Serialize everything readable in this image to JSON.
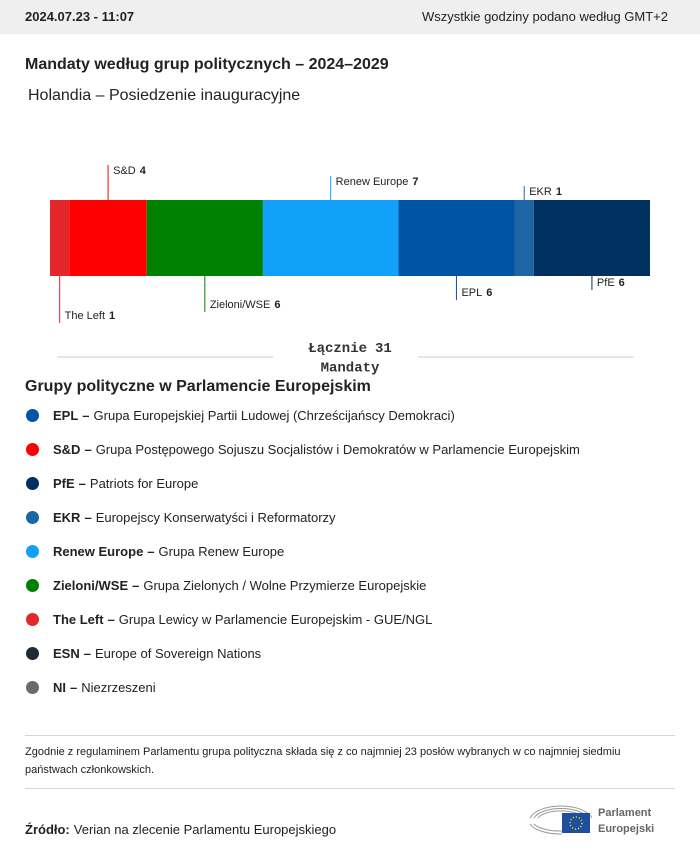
{
  "header": {
    "timestamp": "2024.07.23 - 11:07",
    "timezone_note": "Wszystkie godziny podano według GMT+2"
  },
  "chart_data": {
    "type": "stacked-bar",
    "title": "Mandaty według grup politycznych – 2024–2029",
    "subtitle": "Holandia – Posiedzenie inauguracyjne",
    "categories": [
      "The Left",
      "S&D",
      "Zieloni/WSE",
      "Renew Europe",
      "EPL",
      "EKR",
      "PfE"
    ],
    "values": [
      1,
      4,
      6,
      7,
      6,
      1,
      6
    ],
    "colors": [
      "#e3262c",
      "#ff0000",
      "#008000",
      "#11a0fa",
      "#0054a6",
      "#1d66a6",
      "#00305f"
    ],
    "total_label": "Łącznie",
    "total": 31,
    "total_unit": "Mandaty"
  },
  "legend": {
    "title": "Grupy polityczne w Parlamencie Europejskim",
    "separator": "–",
    "items": [
      {
        "abbr": "EPL",
        "description": "Grupa Europejskiej Partii Ludowej (Chrześcijańscy Demokraci)",
        "color": "#0054a6"
      },
      {
        "abbr": "S&D",
        "description": "Grupa Postępowego Sojuszu Socjalistów i Demokratów w Parlamencie Europejskim",
        "color": "#ff0000"
      },
      {
        "abbr": "PfE",
        "description": "Patriots for Europe",
        "color": "#00305f"
      },
      {
        "abbr": "EKR",
        "description": "Europejscy Konserwatyści i Reformatorzy",
        "color": "#1d66a6"
      },
      {
        "abbr": "Renew Europe",
        "description": "Grupa Renew Europe",
        "color": "#11a0fa"
      },
      {
        "abbr": "Zieloni/WSE",
        "description": "Grupa Zielonych / Wolne Przymierze Europejskie",
        "color": "#008000"
      },
      {
        "abbr": "The Left",
        "description": "Grupa Lewicy w Parlamencie Europejskim - GUE/NGL",
        "color": "#e3262c"
      },
      {
        "abbr": "ESN",
        "description": "Europe of Sovereign Nations",
        "color": "#1c2a3a"
      },
      {
        "abbr": "NI",
        "description": "Niezrzeszeni",
        "color": "#6b6b6b"
      }
    ]
  },
  "footnote": "Zgodnie z regulaminem Parlamentu grupa polityczna składa się z co najmniej 23 posłów wybranych w co najmniej siedmiu państwach członkowskich.",
  "source": {
    "label": "Źródło:",
    "text": "Verian na zlecenie Parlamentu Europejskiego"
  },
  "logo": {
    "line1": "Parlament",
    "line2": "Europejski"
  }
}
